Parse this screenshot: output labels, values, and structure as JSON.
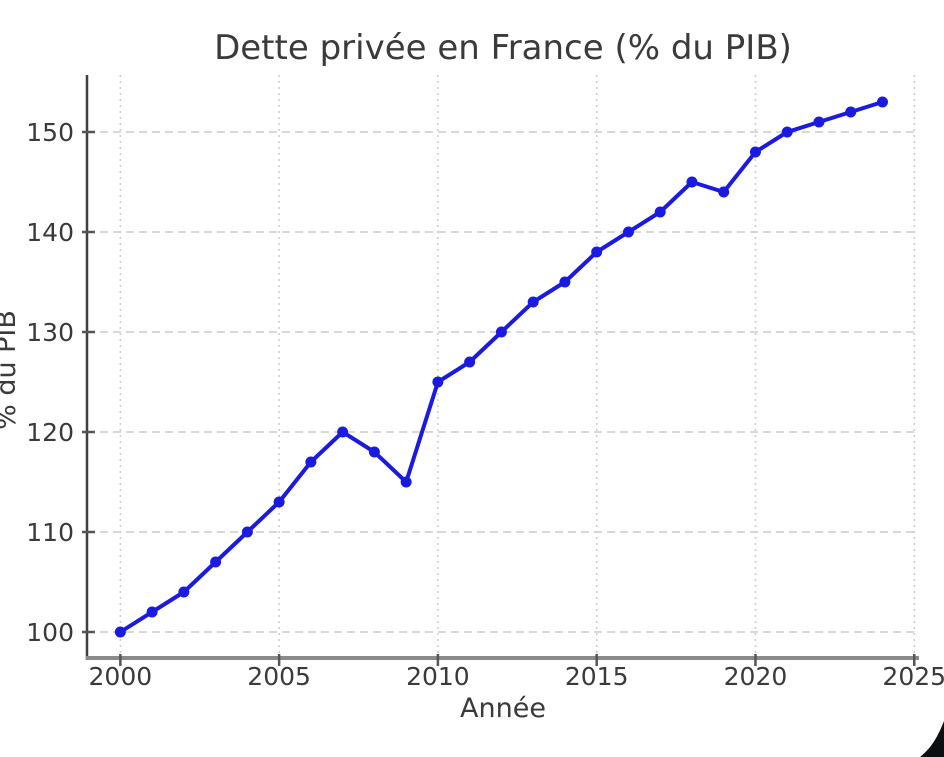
{
  "chart_data": {
    "type": "line",
    "title": "Dette privée en France (% du PIB)",
    "xlabel": "Année",
    "ylabel": "% du PIB",
    "x": [
      2000,
      2001,
      2002,
      2003,
      2004,
      2005,
      2006,
      2007,
      2008,
      2009,
      2010,
      2011,
      2012,
      2013,
      2014,
      2015,
      2016,
      2017,
      2018,
      2019,
      2020,
      2021,
      2022,
      2023,
      2024
    ],
    "values": [
      100,
      102,
      104,
      107,
      110,
      113,
      117,
      120,
      118,
      115,
      125,
      127,
      130,
      133,
      135,
      138,
      140,
      142,
      145,
      144,
      148,
      150,
      151,
      152,
      153
    ],
    "x_ticks": [
      2000,
      2005,
      2010,
      2015,
      2020,
      2025
    ],
    "y_ticks": [
      100,
      110,
      120,
      130,
      140,
      150
    ],
    "xlim": [
      1998.95,
      2025.15
    ],
    "ylim": [
      97.4,
      155.7
    ],
    "grid": true,
    "legend": false,
    "marker": "circle"
  },
  "colors": {
    "line": "#1a1ae0",
    "grid": "#cccccc",
    "text": "#3a3a3a",
    "left_spine": "#3f3f3f",
    "bottom_spine": "#8a8a8a",
    "tick": "#555555",
    "corner_artifact": "#0c0f12",
    "background": "#ffffff"
  }
}
